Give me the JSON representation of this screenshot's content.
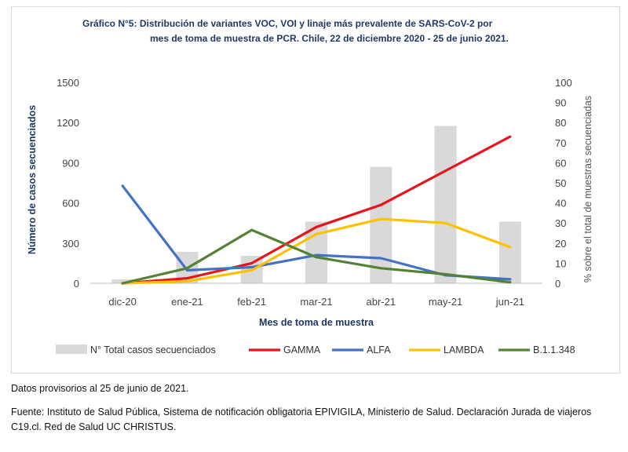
{
  "chart_data": {
    "type": "bar",
    "title_lines": [
      "Gráfico N°5: Distribución de variantes VOC, VOI y linaje más prevalente de SARS-CoV-2 por",
      "mes de toma de muestra de PCR. Chile,  22 de diciembre 2020 - 25 de junio 2021."
    ],
    "categories": [
      "dic-20",
      "ene-21",
      "feb-21",
      "mar-21",
      "abr-21",
      "may-21",
      "jun-21"
    ],
    "xlabel": "Mes de toma de muestra",
    "ylabel": "Número de casos secuenciados",
    "y2label": "% sobre el total de muestras secuenciadas",
    "ylim": [
      0,
      1500
    ],
    "yticks": [
      0,
      300,
      600,
      900,
      1200,
      1500
    ],
    "y2lim": [
      0,
      100
    ],
    "y2ticks": [
      0,
      10,
      20,
      30,
      40,
      50,
      60,
      70,
      80,
      90,
      100
    ],
    "legend_position": "bottom",
    "bars": {
      "name": "N° Total  casos secuenciados",
      "color": "#d9d9d9",
      "values": [
        30,
        235,
        205,
        460,
        870,
        1175,
        460
      ]
    },
    "series": [
      {
        "name": "GAMMA",
        "color": "#e8141b",
        "axis": "right",
        "values": [
          0,
          2.5,
          10,
          28,
          39,
          56,
          73
        ]
      },
      {
        "name": "ALFA",
        "color": "#4472c4",
        "axis": "right",
        "values": [
          48.5,
          6.5,
          8,
          14,
          12.5,
          4,
          2
        ]
      },
      {
        "name": "LAMBDA",
        "color": "#ffc000",
        "axis": "right",
        "values": [
          0,
          1,
          6.5,
          24.5,
          32,
          30,
          18
        ]
      },
      {
        "name": "B.1.1.348",
        "color": "#548235",
        "axis": "right",
        "values": [
          0,
          7.5,
          26.5,
          13,
          7.5,
          4.5,
          0.5
        ]
      }
    ]
  },
  "notes": {
    "provisional": "Datos provisorios al 25 de junio de 2021.",
    "source": "Fuente: Instituto de Salud Pública, Sistema de notificación obligatoria EPIVIGILA, Ministerio de Salud. Declaración Jurada de viajeros C19.cl. Red de Salud UC CHRISTUS."
  }
}
